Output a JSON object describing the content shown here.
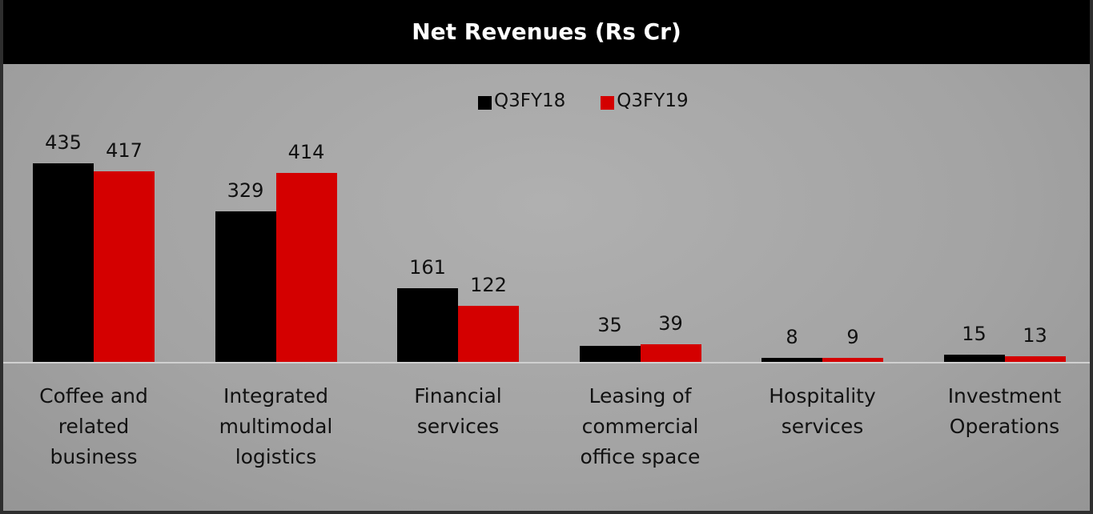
{
  "chart_data": {
    "type": "bar",
    "title": "Net Revenues (Rs Cr)",
    "categories": [
      "Coffee and related business",
      "Integrated multimodal logistics",
      "Financial services",
      "Leasing of commercial office space",
      "Hospitality services",
      "Investment Operations"
    ],
    "series": [
      {
        "name": "Q3FY18",
        "color": "#000000",
        "values": [
          435,
          329,
          161,
          35,
          8,
          15
        ]
      },
      {
        "name": "Q3FY19",
        "color": "#d40000",
        "values": [
          417,
          414,
          122,
          39,
          9,
          13
        ]
      }
    ],
    "ylim": [
      0,
      500
    ],
    "legend": "top"
  }
}
